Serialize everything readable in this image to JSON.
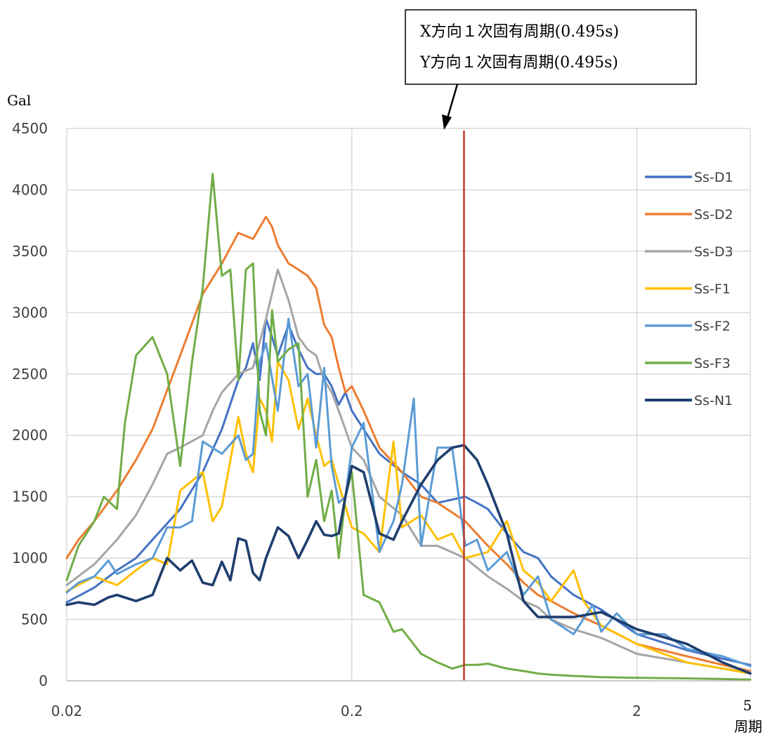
{
  "chart_data": {
    "type": "line",
    "xscale": "log",
    "xlim": [
      0.02,
      5
    ],
    "ylim": [
      0,
      4500
    ],
    "ylabel": "Gal",
    "xlabel": "周期",
    "xticks": [
      {
        "value": 0.02,
        "label": "0.02"
      },
      {
        "value": 0.2,
        "label": "0.2"
      },
      {
        "value": 2,
        "label": "2"
      },
      {
        "value": 5,
        "label": "5"
      }
    ],
    "yticks": [
      0,
      500,
      1000,
      1500,
      2000,
      2500,
      3000,
      3500,
      4000,
      4500
    ],
    "grid": true,
    "legend_position": "right",
    "annotation": {
      "lines": [
        "X方向１次固有周期(0.495s)",
        "Y方向１次固有周期(0.495s)"
      ],
      "x": 0.495,
      "line_color": "#c0392b"
    },
    "series": [
      {
        "name": "Ss-D1",
        "color": "#4472c4",
        "x": [
          0.02,
          0.025,
          0.03,
          0.035,
          0.04,
          0.05,
          0.06,
          0.07,
          0.08,
          0.085,
          0.09,
          0.095,
          0.1,
          0.105,
          0.11,
          0.12,
          0.13,
          0.14,
          0.15,
          0.16,
          0.17,
          0.18,
          0.19,
          0.2,
          0.22,
          0.25,
          0.3,
          0.35,
          0.4,
          0.5,
          0.55,
          0.6,
          0.7,
          0.8,
          0.9,
          1.0,
          1.2,
          1.5,
          2.0,
          3.0,
          4.0,
          5.0
        ],
        "y": [
          640,
          760,
          900,
          1000,
          1150,
          1400,
          1700,
          2050,
          2450,
          2550,
          2750,
          2450,
          2950,
          2800,
          2650,
          2900,
          2700,
          2550,
          2500,
          2500,
          2400,
          2250,
          2350,
          2200,
          2050,
          1850,
          1700,
          1600,
          1450,
          1500,
          1450,
          1400,
          1200,
          1050,
          1000,
          850,
          700,
          580,
          380,
          250,
          180,
          130
        ]
      },
      {
        "name": "Ss-D2",
        "color": "#ed7d31",
        "x": [
          0.02,
          0.022,
          0.025,
          0.03,
          0.035,
          0.04,
          0.05,
          0.06,
          0.07,
          0.08,
          0.09,
          0.1,
          0.105,
          0.11,
          0.12,
          0.13,
          0.14,
          0.15,
          0.16,
          0.17,
          0.18,
          0.19,
          0.2,
          0.22,
          0.25,
          0.3,
          0.35,
          0.4,
          0.5,
          0.6,
          0.7,
          0.8,
          0.9,
          1.0,
          1.2,
          1.5,
          2.0,
          3.0,
          4.0,
          5.0
        ],
        "y": [
          1000,
          1150,
          1300,
          1550,
          1800,
          2050,
          2650,
          3150,
          3400,
          3650,
          3600,
          3780,
          3700,
          3550,
          3400,
          3350,
          3300,
          3200,
          2900,
          2800,
          2550,
          2350,
          2400,
          2200,
          1900,
          1700,
          1500,
          1450,
          1300,
          1100,
          950,
          800,
          700,
          650,
          550,
          450,
          300,
          200,
          130,
          80
        ]
      },
      {
        "name": "Ss-D3",
        "color": "#a5a5a5",
        "x": [
          0.02,
          0.025,
          0.03,
          0.035,
          0.04,
          0.045,
          0.05,
          0.06,
          0.065,
          0.07,
          0.08,
          0.09,
          0.1,
          0.11,
          0.12,
          0.13,
          0.14,
          0.15,
          0.16,
          0.17,
          0.18,
          0.2,
          0.22,
          0.25,
          0.3,
          0.35,
          0.4,
          0.5,
          0.6,
          0.7,
          0.8,
          0.9,
          1.0,
          1.2,
          1.5,
          2.0,
          3.0,
          4.0,
          5.0
        ],
        "y": [
          780,
          950,
          1150,
          1350,
          1600,
          1850,
          1900,
          2000,
          2200,
          2350,
          2500,
          2550,
          2950,
          3350,
          3100,
          2800,
          2700,
          2650,
          2450,
          2350,
          2200,
          1900,
          1800,
          1500,
          1350,
          1100,
          1100,
          1000,
          850,
          750,
          650,
          600,
          500,
          420,
          350,
          220,
          150,
          100,
          70
        ]
      },
      {
        "name": "Ss-F1",
        "color": "#ffc000",
        "x": [
          0.02,
          0.025,
          0.03,
          0.035,
          0.04,
          0.045,
          0.05,
          0.06,
          0.065,
          0.07,
          0.08,
          0.085,
          0.09,
          0.095,
          0.1,
          0.105,
          0.11,
          0.12,
          0.13,
          0.14,
          0.15,
          0.16,
          0.17,
          0.18,
          0.2,
          0.22,
          0.25,
          0.28,
          0.3,
          0.35,
          0.4,
          0.45,
          0.5,
          0.6,
          0.7,
          0.8,
          0.9,
          1.0,
          1.2,
          1.3,
          1.5,
          2.0,
          3.0,
          4.0,
          5.0
        ],
        "y": [
          730,
          850,
          780,
          900,
          1000,
          950,
          1550,
          1700,
          1300,
          1420,
          2150,
          1850,
          1700,
          2300,
          2200,
          1950,
          2600,
          2450,
          2050,
          2300,
          2000,
          1750,
          1800,
          1600,
          1250,
          1200,
          1050,
          1950,
          1250,
          1350,
          1150,
          1200,
          1000,
          1050,
          1300,
          900,
          800,
          650,
          900,
          650,
          450,
          300,
          150,
          100,
          60
        ]
      },
      {
        "name": "Ss-F2",
        "color": "#5b9bd5",
        "x": [
          0.02,
          0.022,
          0.025,
          0.028,
          0.03,
          0.035,
          0.04,
          0.045,
          0.05,
          0.055,
          0.06,
          0.07,
          0.08,
          0.085,
          0.09,
          0.095,
          0.1,
          0.11,
          0.12,
          0.13,
          0.14,
          0.15,
          0.16,
          0.17,
          0.18,
          0.19,
          0.2,
          0.22,
          0.25,
          0.28,
          0.3,
          0.33,
          0.35,
          0.4,
          0.45,
          0.5,
          0.55,
          0.6,
          0.7,
          0.8,
          0.9,
          1.0,
          1.2,
          1.4,
          1.5,
          1.7,
          2.0,
          2.5,
          3.0,
          4.0,
          5.0
        ],
        "y": [
          720,
          800,
          850,
          980,
          870,
          950,
          1000,
          1250,
          1250,
          1300,
          1950,
          1850,
          2000,
          1800,
          1850,
          2600,
          2750,
          2200,
          2950,
          2400,
          2500,
          1900,
          2550,
          1750,
          1450,
          1500,
          1900,
          2100,
          1050,
          1300,
          1600,
          2300,
          1100,
          1900,
          1900,
          1100,
          1150,
          900,
          1050,
          700,
          850,
          500,
          380,
          620,
          400,
          550,
          380,
          380,
          260,
          200,
          120
        ]
      },
      {
        "name": "Ss-F3",
        "color": "#70ad47",
        "x": [
          0.02,
          0.022,
          0.025,
          0.027,
          0.03,
          0.032,
          0.035,
          0.04,
          0.045,
          0.05,
          0.055,
          0.06,
          0.065,
          0.07,
          0.075,
          0.08,
          0.085,
          0.09,
          0.095,
          0.1,
          0.105,
          0.11,
          0.12,
          0.13,
          0.14,
          0.15,
          0.16,
          0.17,
          0.18,
          0.19,
          0.2,
          0.22,
          0.25,
          0.28,
          0.3,
          0.35,
          0.4,
          0.45,
          0.5,
          0.55,
          0.6,
          0.7,
          0.8,
          0.9,
          1.0,
          1.2,
          1.5,
          2.0,
          3.0,
          4.0,
          5.0
        ],
        "y": [
          820,
          1100,
          1300,
          1500,
          1400,
          2100,
          2650,
          2800,
          2500,
          1750,
          2600,
          3200,
          4130,
          3300,
          3350,
          2450,
          3350,
          3400,
          2200,
          2000,
          3020,
          2600,
          2700,
          2750,
          1500,
          1800,
          1300,
          1550,
          1000,
          1500,
          1700,
          700,
          640,
          400,
          420,
          220,
          150,
          100,
          130,
          130,
          140,
          100,
          80,
          60,
          50,
          40,
          30,
          25,
          20,
          15,
          10
        ]
      },
      {
        "name": "Ss-N1",
        "color": "#1f3e6e",
        "x": [
          0.02,
          0.022,
          0.025,
          0.028,
          0.03,
          0.035,
          0.04,
          0.045,
          0.05,
          0.055,
          0.06,
          0.065,
          0.07,
          0.075,
          0.08,
          0.085,
          0.09,
          0.095,
          0.1,
          0.11,
          0.12,
          0.13,
          0.14,
          0.15,
          0.16,
          0.17,
          0.18,
          0.19,
          0.2,
          0.22,
          0.25,
          0.28,
          0.3,
          0.35,
          0.4,
          0.45,
          0.495,
          0.55,
          0.6,
          0.7,
          0.8,
          0.9,
          1.0,
          1.2,
          1.5,
          2.0,
          3.0,
          4.0,
          5.0
        ],
        "y": [
          620,
          640,
          620,
          680,
          700,
          650,
          700,
          1000,
          900,
          980,
          800,
          780,
          970,
          820,
          1160,
          1140,
          880,
          820,
          1000,
          1250,
          1180,
          1000,
          1150,
          1300,
          1190,
          1180,
          1200,
          1500,
          1750,
          1700,
          1200,
          1150,
          1300,
          1600,
          1800,
          1900,
          1920,
          1800,
          1600,
          1200,
          650,
          520,
          520,
          520,
          560,
          420,
          300,
          150,
          60
        ]
      }
    ]
  }
}
